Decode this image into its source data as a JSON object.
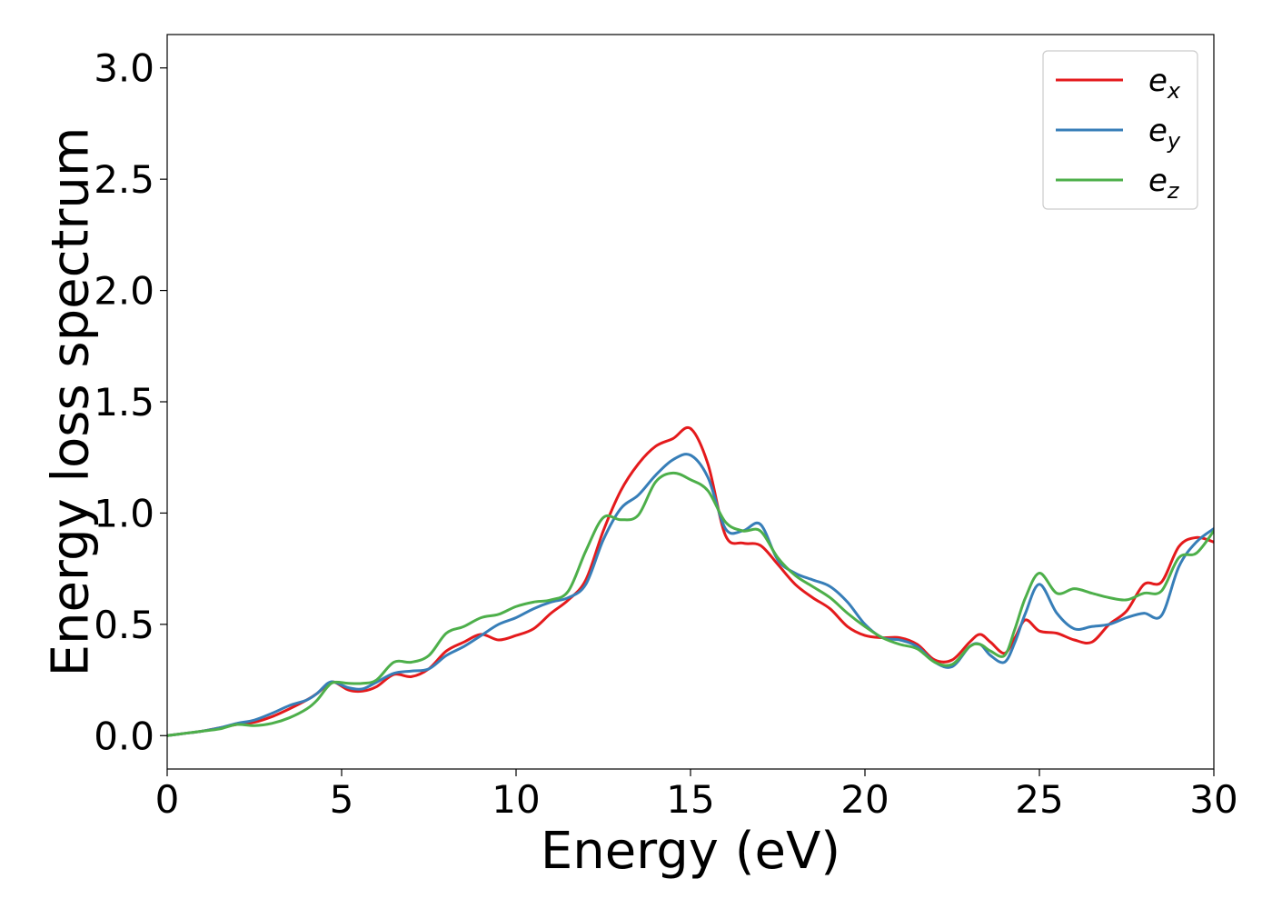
{
  "chart_data": {
    "type": "line",
    "title": "",
    "xlabel": "Energy (eV)",
    "ylabel": "Energy loss spectrum",
    "xlim": [
      0,
      30
    ],
    "ylim": [
      -0.15,
      3.15
    ],
    "xticks": [
      0,
      5,
      10,
      15,
      20,
      25,
      30
    ],
    "yticks": [
      0.0,
      0.5,
      1.0,
      1.5,
      2.0,
      2.5,
      3.0
    ],
    "xtick_labels": [
      "0",
      "5",
      "10",
      "15",
      "20",
      "25",
      "30"
    ],
    "ytick_labels": [
      "0.0",
      "0.5",
      "1.0",
      "1.5",
      "2.0",
      "2.5",
      "3.0"
    ],
    "grid": false,
    "legend_position": "top-right",
    "series": [
      {
        "name": "e",
        "subscript": "x",
        "color": "#e41a1c",
        "x": [
          0,
          0.5,
          1,
          1.5,
          2,
          2.5,
          3,
          3.5,
          4,
          4.3,
          4.6,
          4.8,
          5.2,
          5.6,
          6,
          6.5,
          7,
          7.5,
          8,
          8.5,
          9,
          9.5,
          10,
          10.5,
          11,
          11.5,
          12,
          12.5,
          13,
          13.5,
          14,
          14.5,
          15,
          15.5,
          16,
          16.5,
          17,
          17.5,
          18,
          18.5,
          19,
          19.5,
          20,
          20.5,
          21,
          21.5,
          22,
          22.5,
          23,
          23.3,
          23.6,
          24,
          24.3,
          24.6,
          25,
          25.5,
          26,
          26.5,
          27,
          27.5,
          28,
          28.5,
          29,
          29.5,
          30
        ],
        "y": [
          0.0,
          0.01,
          0.02,
          0.035,
          0.05,
          0.06,
          0.085,
          0.12,
          0.16,
          0.19,
          0.23,
          0.24,
          0.205,
          0.2,
          0.22,
          0.275,
          0.265,
          0.3,
          0.38,
          0.42,
          0.455,
          0.43,
          0.45,
          0.48,
          0.55,
          0.61,
          0.7,
          0.92,
          1.1,
          1.22,
          1.3,
          1.335,
          1.38,
          1.22,
          0.9,
          0.865,
          0.855,
          0.77,
          0.68,
          0.62,
          0.57,
          0.49,
          0.45,
          0.44,
          0.44,
          0.41,
          0.34,
          0.34,
          0.42,
          0.455,
          0.42,
          0.37,
          0.44,
          0.52,
          0.47,
          0.46,
          0.43,
          0.42,
          0.5,
          0.56,
          0.68,
          0.69,
          0.85,
          0.89,
          0.87
        ]
      },
      {
        "name": "e",
        "subscript": "y",
        "color": "#377eb8",
        "x": [
          0,
          0.5,
          1,
          1.5,
          2,
          2.5,
          3,
          3.5,
          4,
          4.3,
          4.6,
          4.8,
          5.2,
          5.6,
          6,
          6.5,
          7,
          7.5,
          8,
          8.5,
          9,
          9.5,
          10,
          10.5,
          11,
          11.5,
          12,
          12.5,
          13,
          13.5,
          14,
          14.5,
          15,
          15.5,
          16,
          16.5,
          17,
          17.5,
          18,
          18.5,
          19,
          19.5,
          20,
          20.5,
          21,
          21.5,
          22,
          22.5,
          23,
          23.3,
          23.6,
          24,
          24.3,
          24.6,
          25,
          25.5,
          26,
          26.5,
          27,
          27.5,
          28,
          28.5,
          29,
          29.5,
          30
        ],
        "y": [
          0.0,
          0.01,
          0.02,
          0.035,
          0.055,
          0.07,
          0.1,
          0.135,
          0.16,
          0.19,
          0.235,
          0.24,
          0.215,
          0.21,
          0.24,
          0.28,
          0.29,
          0.3,
          0.36,
          0.4,
          0.45,
          0.5,
          0.53,
          0.57,
          0.6,
          0.62,
          0.68,
          0.88,
          1.02,
          1.08,
          1.17,
          1.24,
          1.26,
          1.16,
          0.93,
          0.92,
          0.95,
          0.79,
          0.73,
          0.7,
          0.67,
          0.6,
          0.5,
          0.44,
          0.43,
          0.4,
          0.33,
          0.31,
          0.4,
          0.41,
          0.36,
          0.33,
          0.42,
          0.55,
          0.68,
          0.55,
          0.48,
          0.49,
          0.5,
          0.53,
          0.55,
          0.54,
          0.76,
          0.87,
          0.93
        ]
      },
      {
        "name": "e",
        "subscript": "z",
        "color": "#4daf4a",
        "x": [
          0,
          0.5,
          1,
          1.5,
          2,
          2.5,
          3,
          3.5,
          4,
          4.3,
          4.6,
          4.8,
          5.2,
          5.6,
          6,
          6.5,
          7,
          7.5,
          8,
          8.5,
          9,
          9.5,
          10,
          10.5,
          11,
          11.5,
          12,
          12.5,
          13,
          13.5,
          14,
          14.5,
          15,
          15.5,
          16,
          16.5,
          17,
          17.5,
          18,
          18.5,
          19,
          19.5,
          20,
          20.5,
          21,
          21.5,
          22,
          22.5,
          23,
          23.3,
          23.6,
          24,
          24.3,
          24.6,
          25,
          25.5,
          26,
          26.5,
          27,
          27.5,
          28,
          28.5,
          29,
          29.5,
          30
        ],
        "y": [
          0.0,
          0.01,
          0.02,
          0.03,
          0.05,
          0.045,
          0.055,
          0.08,
          0.12,
          0.16,
          0.22,
          0.24,
          0.235,
          0.235,
          0.25,
          0.33,
          0.33,
          0.36,
          0.46,
          0.49,
          0.53,
          0.545,
          0.58,
          0.6,
          0.61,
          0.65,
          0.83,
          0.98,
          0.97,
          0.99,
          1.14,
          1.18,
          1.15,
          1.1,
          0.96,
          0.92,
          0.92,
          0.8,
          0.72,
          0.67,
          0.62,
          0.55,
          0.49,
          0.44,
          0.41,
          0.39,
          0.33,
          0.32,
          0.4,
          0.41,
          0.38,
          0.36,
          0.48,
          0.62,
          0.73,
          0.64,
          0.66,
          0.64,
          0.62,
          0.61,
          0.64,
          0.65,
          0.8,
          0.82,
          0.92
        ]
      }
    ]
  }
}
